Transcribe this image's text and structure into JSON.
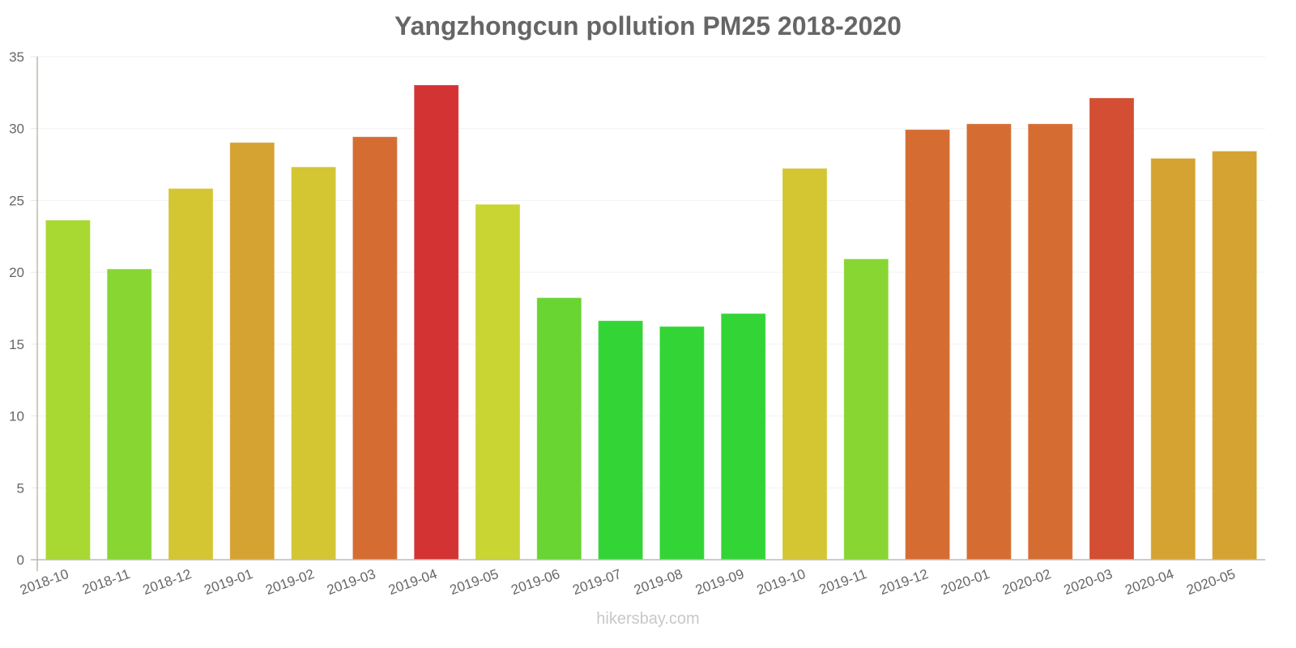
{
  "chart_data": {
    "type": "bar",
    "title": "Yangzhongcun pollution PM25 2018-2020",
    "xlabel": "",
    "ylabel": "",
    "ylim": [
      0,
      35
    ],
    "yticks": [
      0,
      5,
      10,
      15,
      20,
      25,
      30,
      35
    ],
    "grid": true,
    "legend": "none",
    "categories": [
      "2018-10",
      "2018-11",
      "2018-12",
      "2019-01",
      "2019-02",
      "2019-03",
      "2019-04",
      "2019-05",
      "2019-06",
      "2019-07",
      "2019-08",
      "2019-09",
      "2019-10",
      "2019-11",
      "2019-12",
      "2020-01",
      "2020-02",
      "2020-03",
      "2020-04",
      "2020-05"
    ],
    "values": [
      23.6,
      20.2,
      25.8,
      29.0,
      27.3,
      29.4,
      33.0,
      24.7,
      18.2,
      16.6,
      16.2,
      17.1,
      27.2,
      20.9,
      29.9,
      30.3,
      30.3,
      32.1,
      27.9,
      28.4
    ],
    "colors": [
      "#addf34",
      "#8bdd34",
      "#dbcb34",
      "#dca834",
      "#dbcb34",
      "#dc7034",
      "#db3535",
      "#cfdc34",
      "#6bdc34",
      "#35dc38",
      "#35dc38",
      "#35dc38",
      "#dbcb34",
      "#8bdd34",
      "#dc7034",
      "#dc7034",
      "#dc7034",
      "#db5035",
      "#dca834",
      "#dca834"
    ]
  },
  "watermark": "hikersbay.com"
}
